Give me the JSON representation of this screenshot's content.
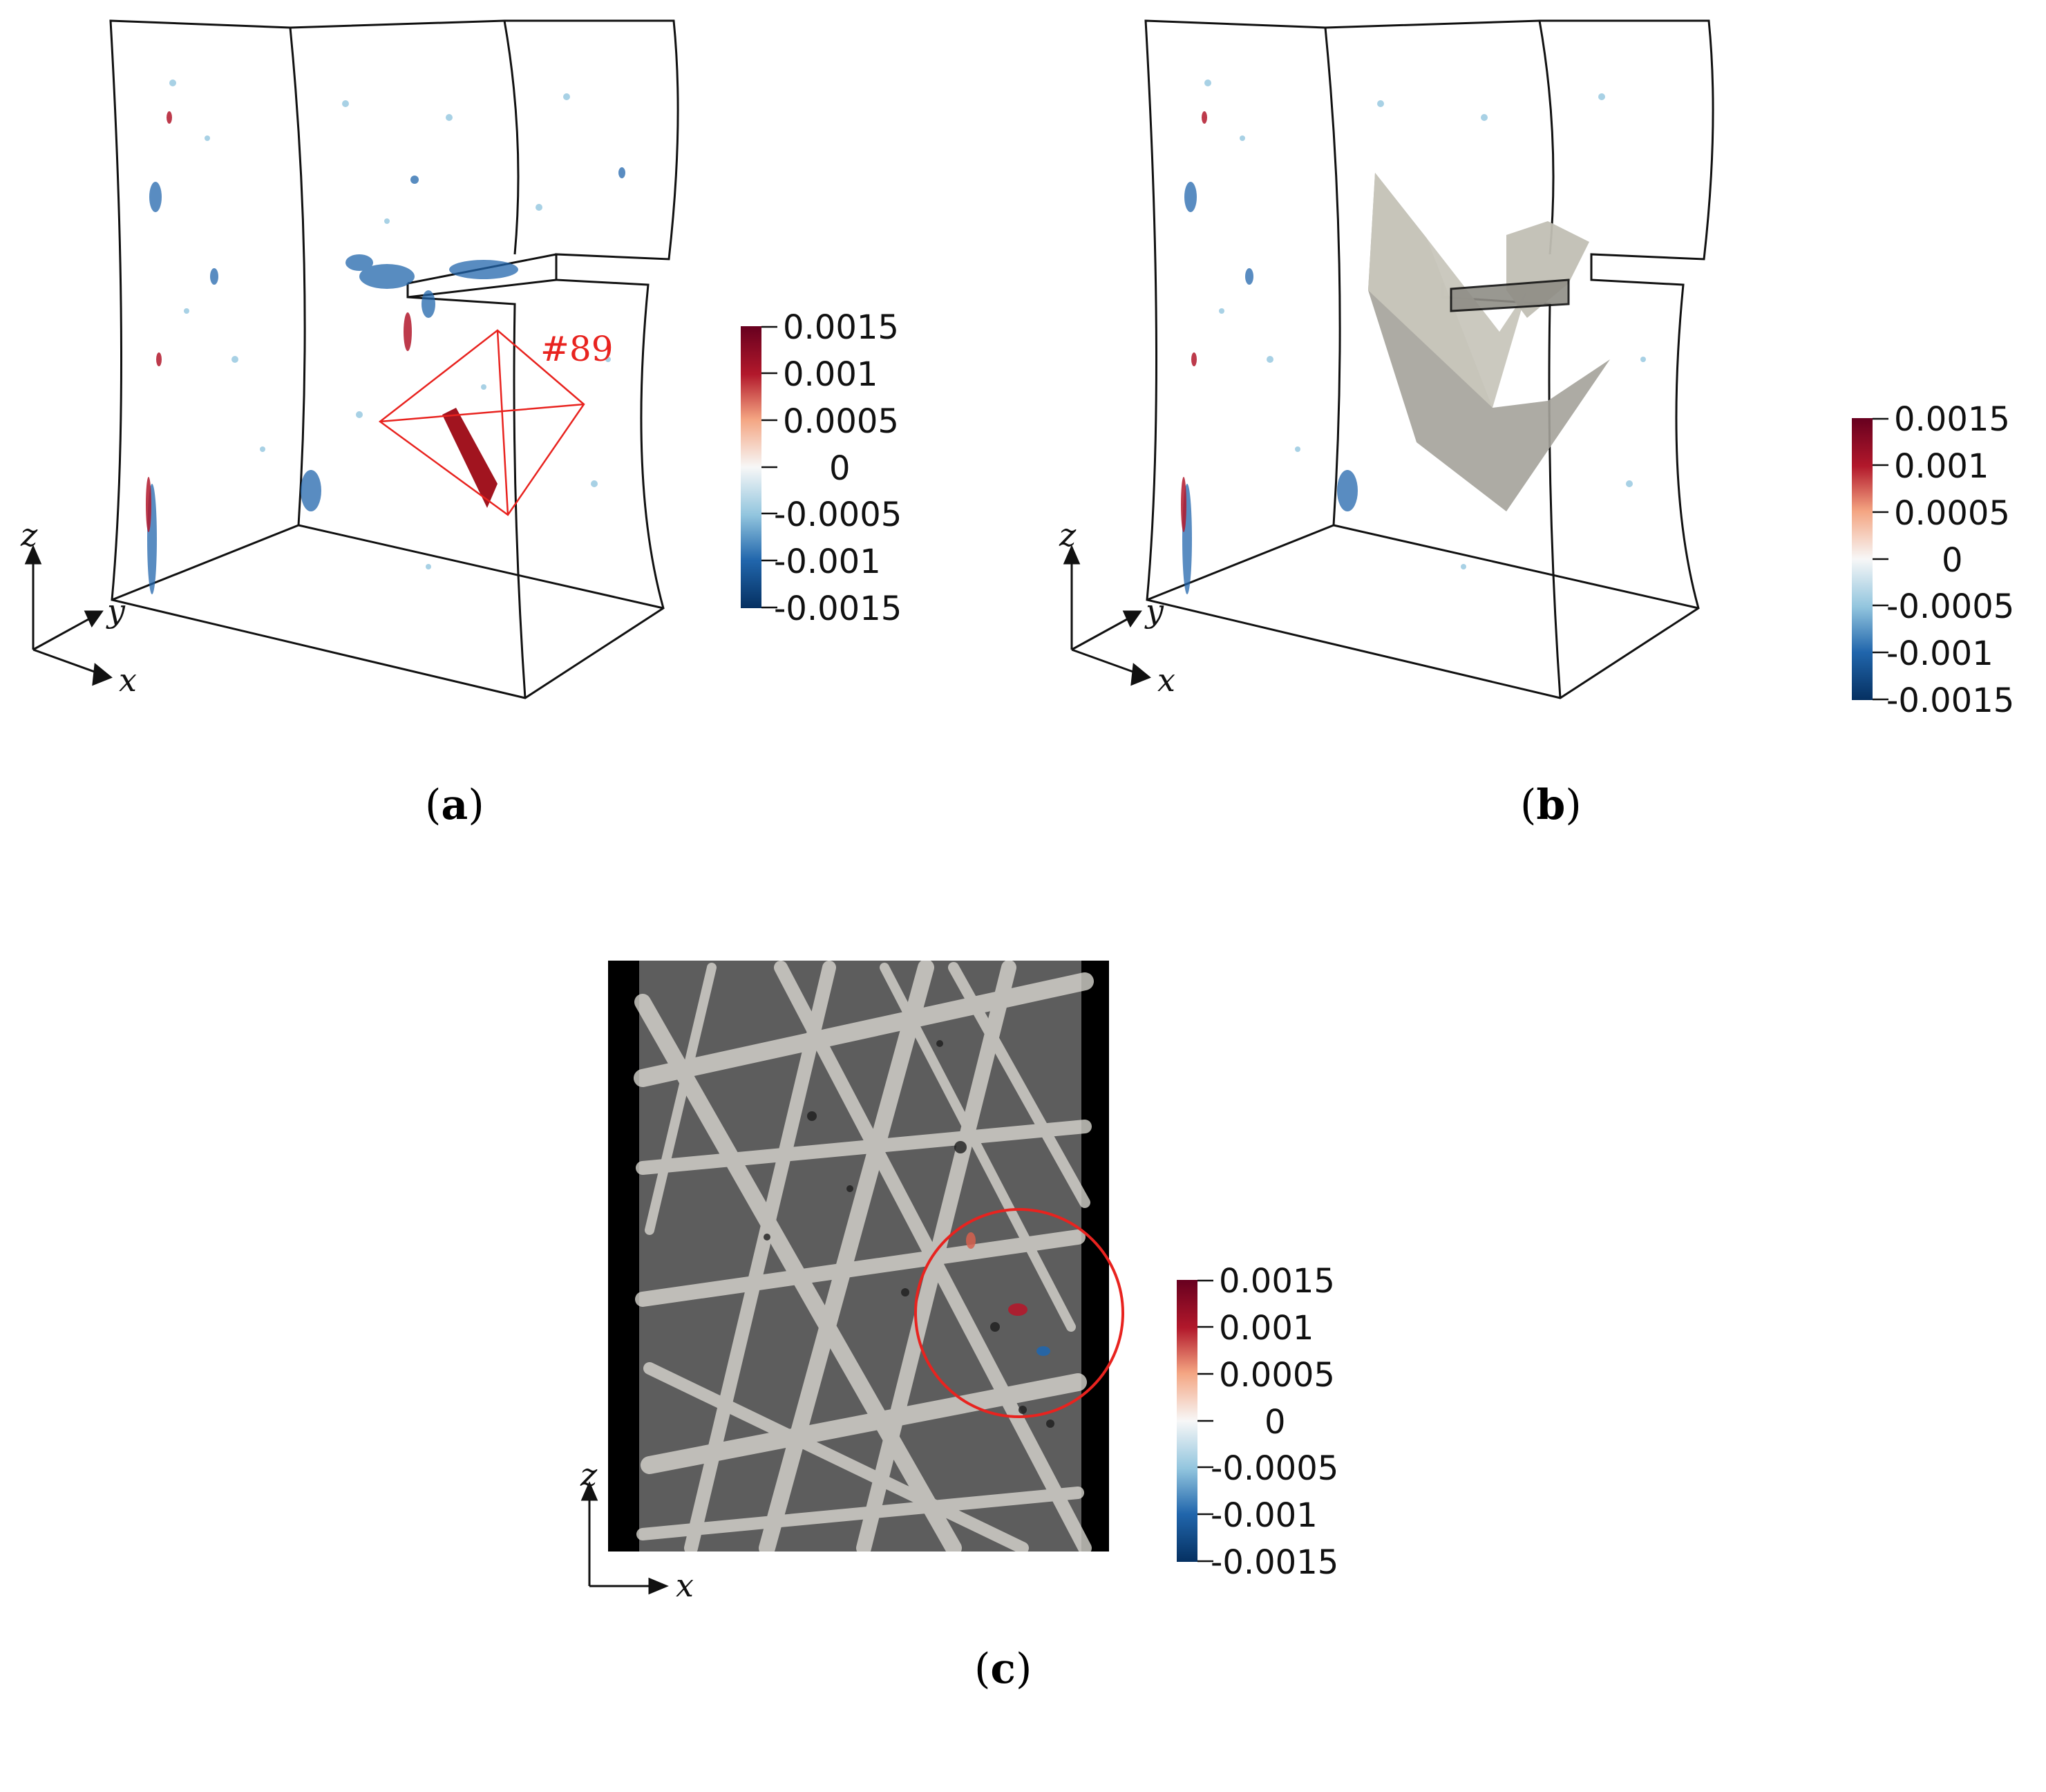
{
  "panels": {
    "a": {
      "caption_letter": "a",
      "annotation": "#89",
      "axes": {
        "z": "z",
        "y": "y",
        "x": "x"
      }
    },
    "b": {
      "caption_letter": "b",
      "axes": {
        "z": "z",
        "y": "y",
        "x": "x"
      }
    },
    "c": {
      "caption_letter": "c",
      "axes": {
        "z": "z",
        "x": "x"
      }
    }
  },
  "colorbar": {
    "labels": [
      "0.0015",
      "0.001",
      "0.0005",
      "0",
      "-0.0005",
      "-0.001",
      "-0.0015"
    ],
    "colors": {
      "max": "#67001f",
      "high": "#b2182b",
      "mid_high": "#f4a582",
      "zero": "#f7f7f7",
      "mid_low": "#92c5de",
      "low": "#2166ac",
      "min": "#053061"
    }
  },
  "colors": {
    "frame": "#111111",
    "annotation": "#e8231f",
    "crack_plane": "#b9b7ac"
  }
}
